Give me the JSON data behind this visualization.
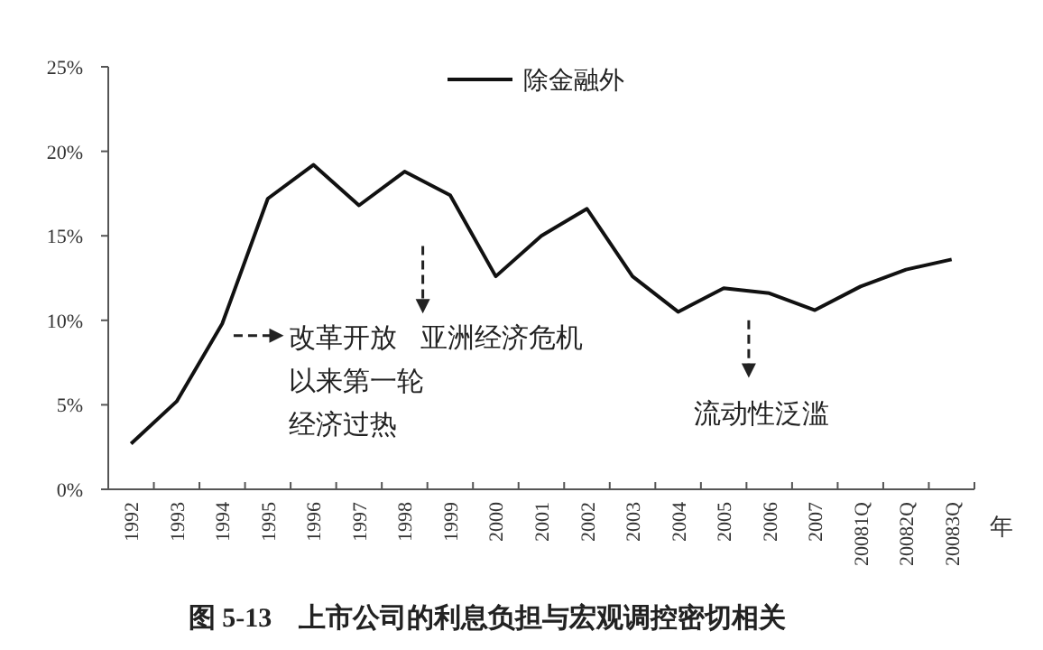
{
  "chart_data": {
    "type": "line",
    "title": "图 5-13　上市公司的利息负担与宏观调控密切相关",
    "xlabel": "年",
    "categories": [
      "1992",
      "1993",
      "1994",
      "1995",
      "1996",
      "1997",
      "1998",
      "1999",
      "2000",
      "2001",
      "2002",
      "2003",
      "2004",
      "2005",
      "2006",
      "2007",
      "20081Q",
      "20082Q",
      "20083Q"
    ],
    "series": [
      {
        "name": "除金融外",
        "color": "#111111",
        "values": [
          2.7,
          5.2,
          9.8,
          17.2,
          19.2,
          16.8,
          18.8,
          17.4,
          12.6,
          15.0,
          16.6,
          12.6,
          10.5,
          11.9,
          11.6,
          10.6,
          12.0,
          13.0,
          13.6
        ]
      }
    ],
    "ylim": [
      0,
      25
    ],
    "yticks": [
      {
        "value": 0,
        "label": "0%"
      },
      {
        "value": 5,
        "label": "5%"
      },
      {
        "value": 10,
        "label": "10%"
      },
      {
        "value": 15,
        "label": "15%"
      },
      {
        "value": 20,
        "label": "20%"
      },
      {
        "value": 25,
        "label": "25%"
      }
    ],
    "grid": false,
    "legend": "top",
    "marker": "none",
    "line_style": "solid",
    "annotations": [
      "改革开放以来第一轮经济过热",
      "亚洲经济危机",
      "流动性泛滥"
    ]
  }
}
